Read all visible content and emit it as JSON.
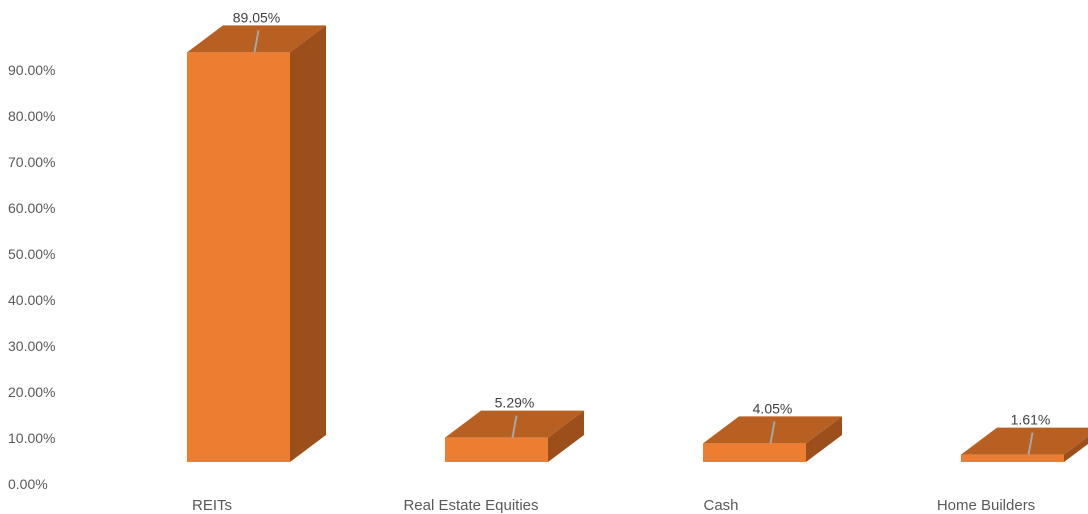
{
  "chart_data": {
    "type": "bar",
    "style": "3d-column",
    "categories": [
      "REITs",
      "Real Estate Equities",
      "Cash",
      "Home Builders"
    ],
    "values": [
      89.05,
      5.29,
      4.05,
      1.61
    ],
    "data_labels": [
      "89.05%",
      "5.29%",
      "4.05%",
      "1.61%"
    ],
    "ylim": [
      0,
      90
    ],
    "y_ticks": [
      0,
      10,
      20,
      30,
      40,
      50,
      60,
      70,
      80,
      90
    ],
    "y_tick_labels": [
      "0.00%",
      "10.00%",
      "20.00%",
      "30.00%",
      "40.00%",
      "50.00%",
      "60.00%",
      "70.00%",
      "80.00%",
      "90.00%"
    ],
    "grid": false,
    "legend": "none",
    "colors": {
      "front": "#ED7D31",
      "top": "#B85F22",
      "side": "#9C4F1A",
      "leader": "#A6A6A6"
    }
  }
}
